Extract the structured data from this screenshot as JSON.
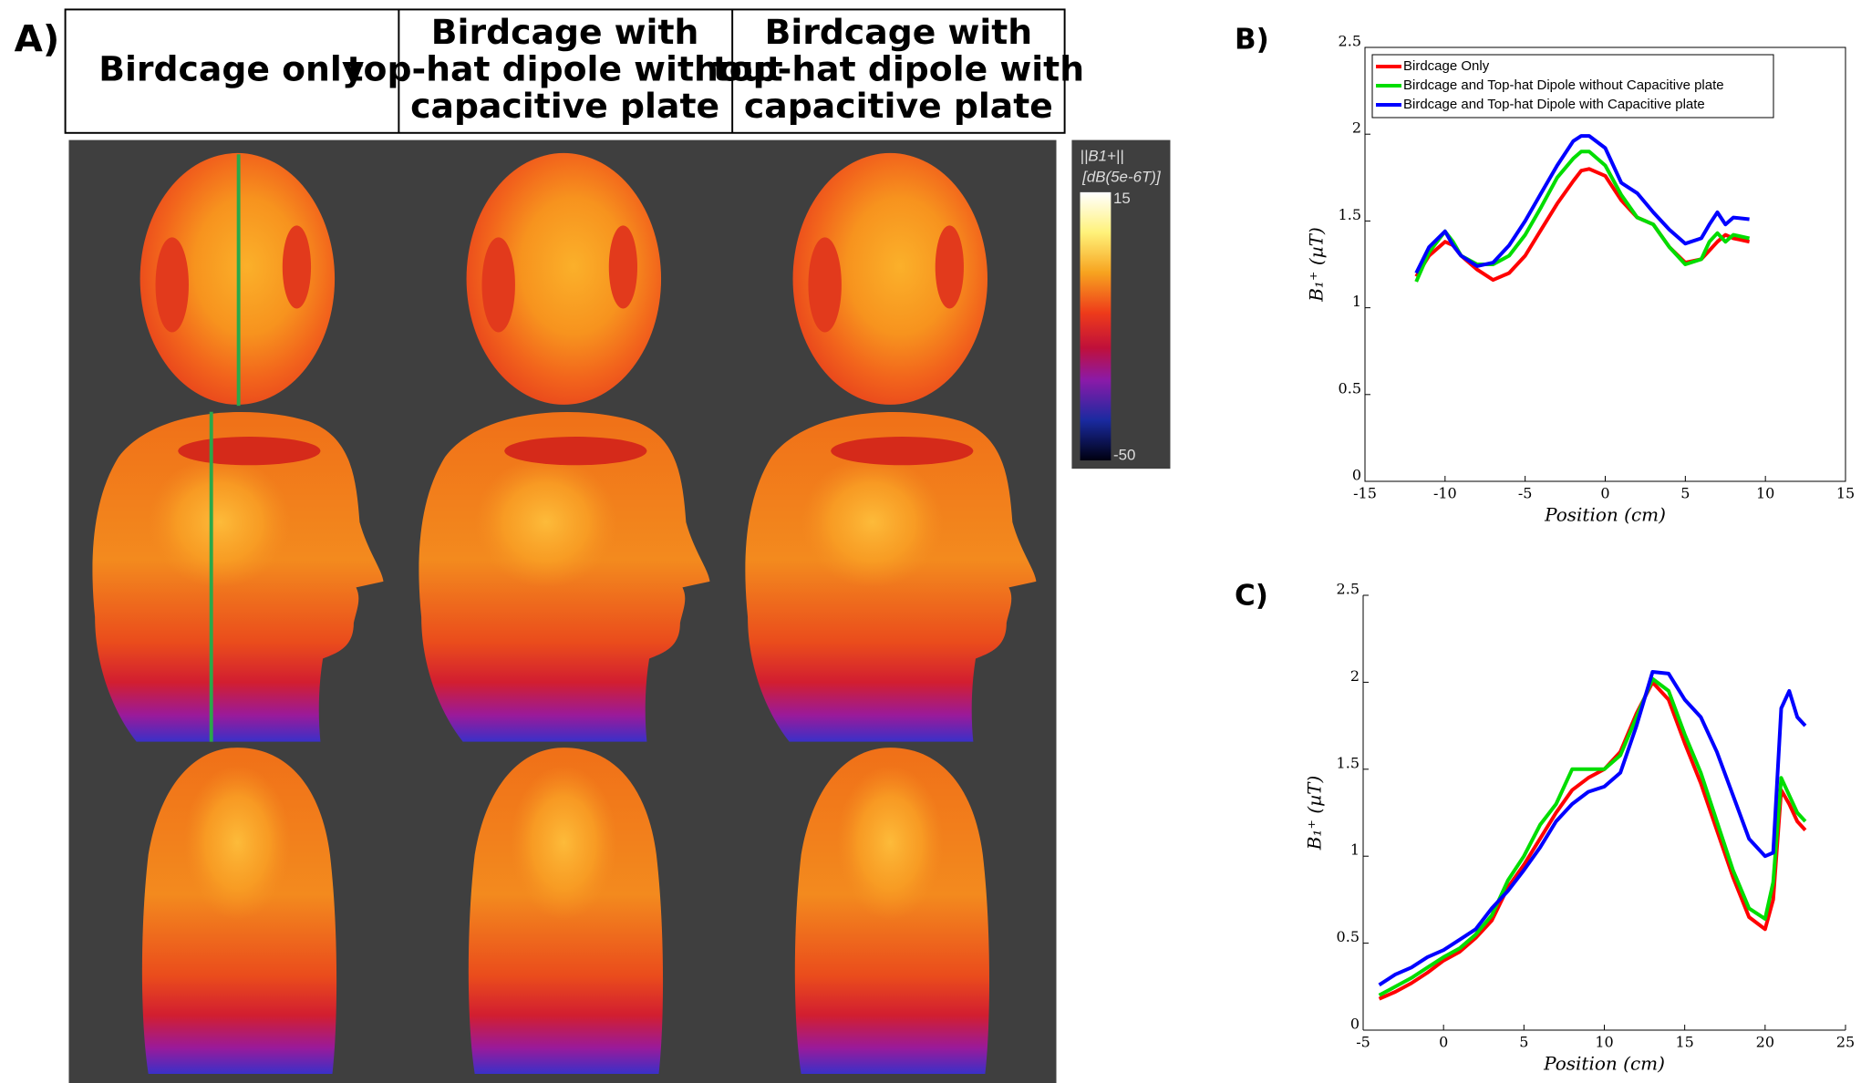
{
  "panel_a": {
    "label": "A)",
    "headers": [
      [
        "Birdcage only"
      ],
      [
        "Birdcage with",
        "top-hat dipole without",
        "capacitive plate"
      ],
      [
        "Birdcage with",
        "top-hat dipole with",
        "capacitive plate"
      ]
    ],
    "colorbar": {
      "title": "||B1+||",
      "unit": "[dB(5e-6T)]",
      "max": 15,
      "min": -50
    }
  },
  "chart_data": [
    {
      "type": "line",
      "panel_label": "B)",
      "x_label": "Position (cm)",
      "y_label": "B₁⁺ (µT)",
      "x": [
        -11.8,
        -11,
        -10,
        -9.5,
        -9,
        -8,
        -7,
        -6,
        -5,
        -4,
        -3,
        -2,
        -1.5,
        -1,
        0,
        1,
        2,
        3,
        4,
        5,
        6,
        6.5,
        7,
        7.5,
        8,
        9
      ],
      "series": [
        {
          "name": "Birdcage Only",
          "color": "#ff0000",
          "values": [
            1.18,
            1.3,
            1.38,
            1.36,
            1.3,
            1.22,
            1.16,
            1.2,
            1.3,
            1.45,
            1.6,
            1.73,
            1.79,
            1.8,
            1.76,
            1.62,
            1.52,
            1.48,
            1.35,
            1.26,
            1.28,
            1.33,
            1.38,
            1.42,
            1.4,
            1.38
          ]
        },
        {
          "name": "Birdcage and Top-hat Dipole without Capacitive plate",
          "color": "#00dd00",
          "values": [
            1.15,
            1.32,
            1.44,
            1.38,
            1.3,
            1.25,
            1.25,
            1.3,
            1.42,
            1.58,
            1.75,
            1.86,
            1.9,
            1.9,
            1.82,
            1.65,
            1.52,
            1.48,
            1.35,
            1.25,
            1.28,
            1.38,
            1.43,
            1.38,
            1.42,
            1.4
          ]
        },
        {
          "name": "Birdcage and Top-hat Dipole with Capacitive plate",
          "color": "#0000ff",
          "values": [
            1.2,
            1.35,
            1.44,
            1.36,
            1.3,
            1.24,
            1.26,
            1.36,
            1.5,
            1.66,
            1.82,
            1.96,
            1.99,
            1.99,
            1.92,
            1.72,
            1.66,
            1.55,
            1.45,
            1.37,
            1.4,
            1.48,
            1.55,
            1.48,
            1.52,
            1.51
          ]
        }
      ],
      "xlim": [
        -15,
        15
      ],
      "xticks": [
        -15,
        -10,
        -5,
        0,
        5,
        10,
        15
      ],
      "ylim": [
        0,
        2.5
      ],
      "yticks": [
        0,
        0.5,
        1,
        1.5,
        2,
        2.5
      ],
      "legend": "upper left",
      "box": true
    },
    {
      "type": "line",
      "panel_label": "C)",
      "x_label": "Position (cm)",
      "y_label": "B₁⁺ (µT)",
      "x": [
        -4,
        -3,
        -2,
        -1,
        0,
        1,
        2,
        3,
        4,
        5,
        6,
        7,
        8,
        9,
        10,
        11,
        12,
        13,
        14,
        15,
        16,
        17,
        18,
        19,
        20,
        20.5,
        21,
        21.5,
        22,
        22.5
      ],
      "series": [
        {
          "color": "#ff0000",
          "values": [
            0.18,
            0.22,
            0.27,
            0.33,
            0.4,
            0.45,
            0.53,
            0.63,
            0.82,
            0.95,
            1.1,
            1.25,
            1.38,
            1.45,
            1.5,
            1.6,
            1.82,
            2.0,
            1.9,
            1.65,
            1.42,
            1.15,
            0.88,
            0.65,
            0.58,
            0.75,
            1.38,
            1.3,
            1.2,
            1.15
          ]
        },
        {
          "color": "#00dd00",
          "values": [
            0.2,
            0.25,
            0.3,
            0.36,
            0.42,
            0.47,
            0.55,
            0.66,
            0.86,
            1.0,
            1.18,
            1.3,
            1.5,
            1.5,
            1.5,
            1.58,
            1.8,
            2.02,
            1.95,
            1.7,
            1.48,
            1.2,
            0.92,
            0.7,
            0.64,
            0.85,
            1.45,
            1.35,
            1.25,
            1.2
          ]
        },
        {
          "color": "#0000ff",
          "values": [
            0.26,
            0.32,
            0.36,
            0.42,
            0.46,
            0.52,
            0.58,
            0.7,
            0.8,
            0.92,
            1.05,
            1.2,
            1.3,
            1.37,
            1.4,
            1.48,
            1.75,
            2.06,
            2.05,
            1.9,
            1.8,
            1.6,
            1.35,
            1.1,
            1.0,
            1.02,
            1.85,
            1.95,
            1.8,
            1.75
          ]
        }
      ],
      "xlim": [
        -5,
        25
      ],
      "xticks": [
        -5,
        0,
        5,
        10,
        15,
        20,
        25
      ],
      "ylim": [
        0,
        2.5
      ],
      "yticks": [
        0,
        0.5,
        1,
        1.5,
        2,
        2.5
      ],
      "box": false
    }
  ]
}
